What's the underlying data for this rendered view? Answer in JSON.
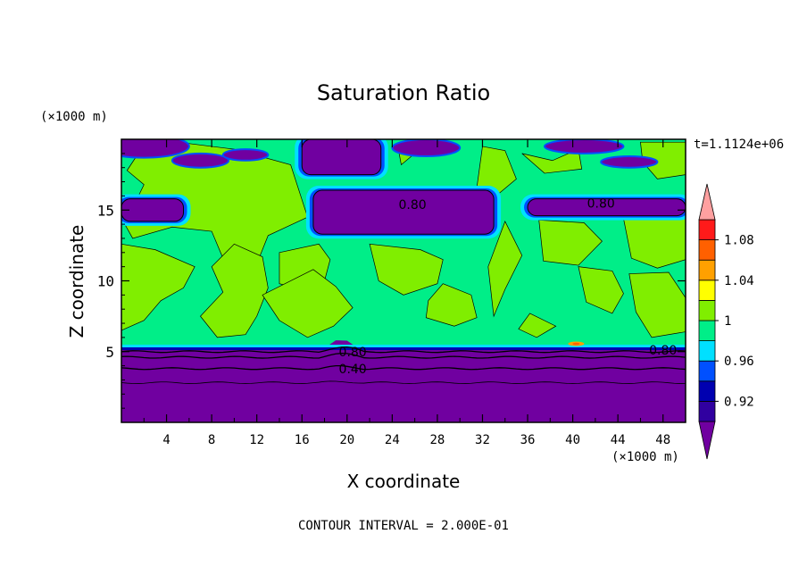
{
  "chart_data": {
    "type": "heatmap",
    "title": "Saturation Ratio",
    "xlabel": "X coordinate",
    "ylabel": "Z coordinate",
    "x_unit": "(×1000 m)",
    "y_unit": "(×1000 m)",
    "time_label": "t=1.1124e+06",
    "footer": "CONTOUR INTERVAL = 2.000E-01",
    "xlim": [
      0,
      50
    ],
    "ylim": [
      0,
      20
    ],
    "x_ticks": [
      "4",
      "8",
      "12",
      "16",
      "20",
      "24",
      "28",
      "32",
      "36",
      "40",
      "44",
      "48"
    ],
    "y_ticks": [
      "5",
      "10",
      "15"
    ],
    "colorbar": {
      "levels": [
        "0.92",
        "0.96",
        "1",
        "1.04",
        "1.08"
      ],
      "colors": [
        "#7000a0",
        "#3000a0",
        "#0000b0",
        "#0050ff",
        "#00e0ff",
        "#00ee88",
        "#80ee00",
        "#ffff00",
        "#ffa000",
        "#ff6000",
        "#ff1a1a",
        "#ffa0a0"
      ]
    },
    "contour_labels": [
      {
        "text": "0.80",
        "x": 20.5,
        "z": 5.0
      },
      {
        "text": "0.40",
        "x": 20.5,
        "z": 3.8
      },
      {
        "text": "0.80",
        "x": 48.0,
        "z": 5.1
      },
      {
        "text": "0.80",
        "x": 25.8,
        "z": 15.4
      },
      {
        "text": "0.80",
        "x": 42.5,
        "z": 15.5
      }
    ],
    "regions": {
      "lower_dry_layer_top_z": 5.3,
      "moist_layer": [
        5.3,
        15.0
      ],
      "upper_dry_bands": [
        {
          "x": [
            0,
            5.5
          ],
          "z": [
            14.2,
            15.8
          ]
        },
        {
          "x": [
            17,
            33
          ],
          "z": [
            13.3,
            16.4
          ]
        },
        {
          "x": [
            36,
            50
          ],
          "z": [
            14.6,
            15.8
          ]
        },
        {
          "x": [
            16,
            23
          ],
          "z": [
            17.5,
            20.0
          ]
        }
      ]
    }
  }
}
